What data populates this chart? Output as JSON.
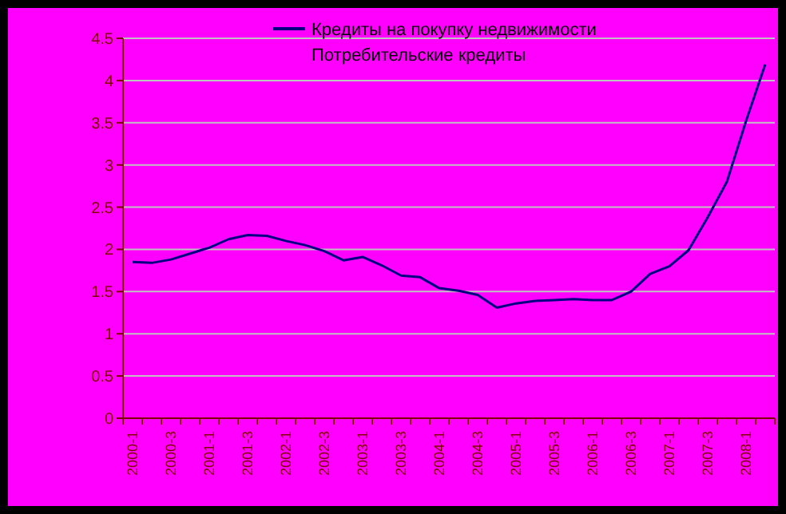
{
  "chart_data": {
    "type": "line",
    "categories": [
      "2000-1",
      null,
      "2000-3",
      null,
      "2001-1",
      null,
      "2001-3",
      null,
      "2002-1",
      null,
      "2002-3",
      null,
      "2003-1",
      null,
      "2003-3",
      null,
      "2004-1",
      null,
      "2004-3",
      null,
      "2005-1",
      null,
      "2005-3",
      null,
      "2006-1",
      null,
      "2006-3",
      null,
      "2007-1",
      null,
      "2007-3",
      null,
      "2008-1",
      null
    ],
    "series": [
      {
        "name": "Кредиты на покупку недвижимости",
        "color": "#000080",
        "values": [
          1.85,
          1.84,
          1.88,
          1.95,
          2.02,
          2.12,
          2.17,
          2.16,
          2.1,
          2.05,
          1.98,
          1.87,
          1.91,
          1.81,
          1.69,
          1.67,
          1.54,
          1.51,
          1.46,
          1.31,
          1.36,
          1.39,
          1.4,
          1.41,
          1.4,
          1.4,
          1.5,
          1.71,
          1.8,
          1.99,
          2.38,
          2.8,
          3.52,
          4.19
        ]
      }
    ],
    "annotations": [
      "Потребительские кредиты"
    ],
    "ylim": [
      0,
      4.5
    ],
    "yticks": [
      0,
      0.5,
      1,
      1.5,
      2,
      2.5,
      3,
      3.5,
      4,
      4.5
    ],
    "grid": "y",
    "legend": "top",
    "marker": "none",
    "line_style": "solid"
  }
}
